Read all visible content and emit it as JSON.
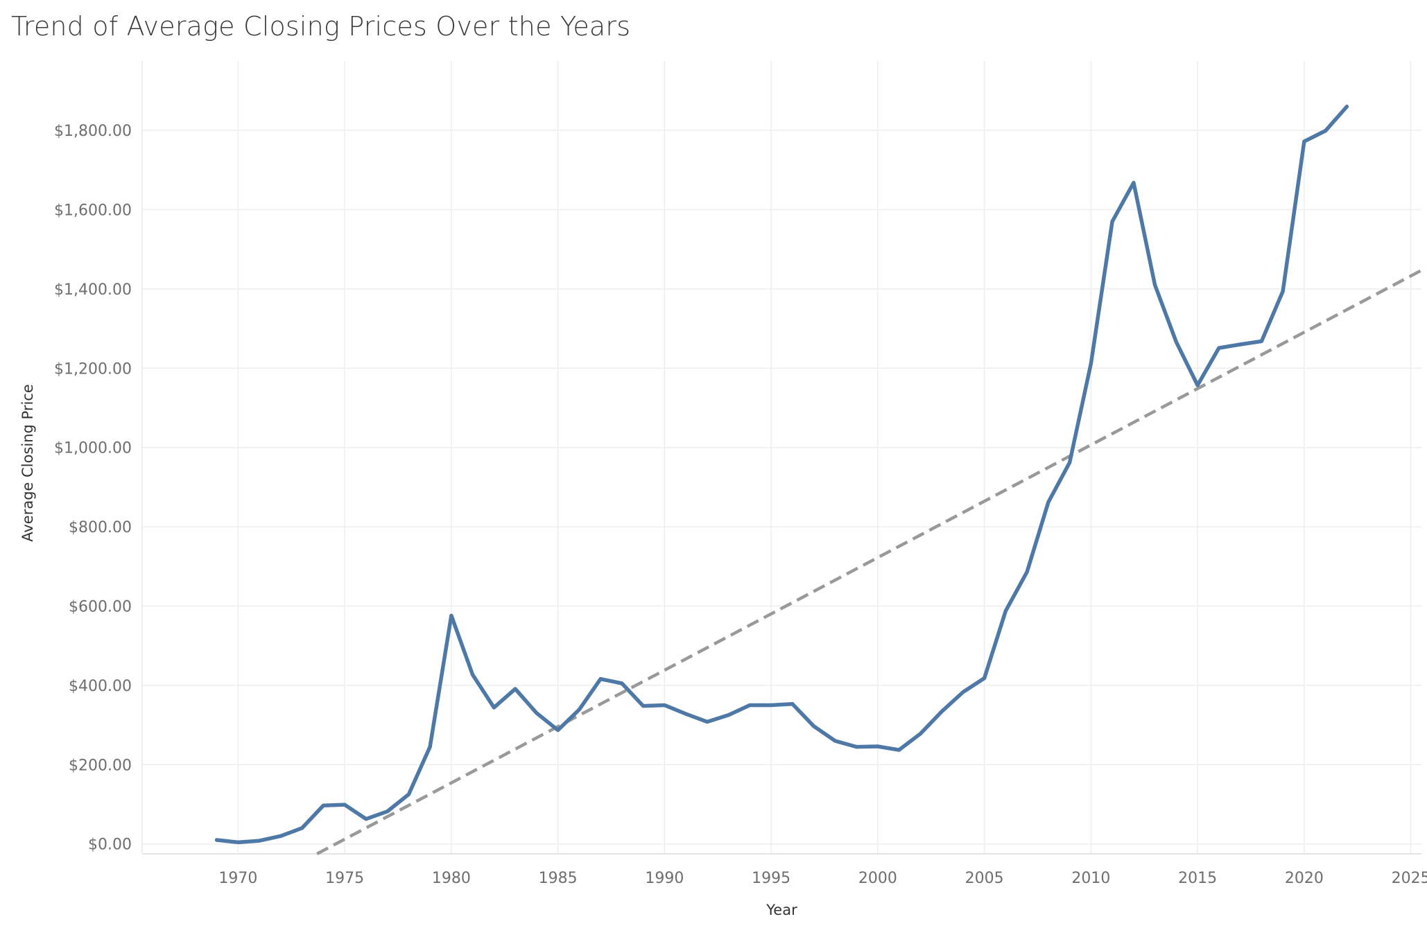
{
  "chart_data": {
    "type": "line",
    "title": "Trend of Average Closing Prices Over the Years",
    "xlabel": "Year",
    "ylabel": "Average Closing Price",
    "xlim": [
      1965.5,
      2025.5
    ],
    "ylim": [
      -25,
      1975
    ],
    "x_ticks": [
      1970,
      1975,
      1980,
      1985,
      1990,
      1995,
      2000,
      2005,
      2010,
      2015,
      2020,
      2025
    ],
    "x_tick_labels": [
      "1970",
      "1975",
      "1980",
      "1985",
      "1990",
      "1995",
      "2000",
      "2005",
      "2010",
      "2015",
      "2020",
      "2025"
    ],
    "y_ticks": [
      0,
      200,
      400,
      600,
      800,
      1000,
      1200,
      1400,
      1600,
      1800
    ],
    "y_tick_labels": [
      "$0.00",
      "$200.00",
      "$400.00",
      "$600.00",
      "$800.00",
      "$1,000.00",
      "$1,200.00",
      "$1,400.00",
      "$1,600.00",
      "$1,800.00"
    ],
    "grid": true,
    "legend": "none",
    "series": [
      {
        "x": [
          1969,
          1970,
          1971,
          1972,
          1973,
          1974,
          1975,
          1976,
          1977,
          1978,
          1979,
          1980,
          1981,
          1982,
          1983,
          1984,
          1985,
          1986,
          1987,
          1988,
          1989,
          1990,
          1991,
          1992,
          1993,
          1994,
          1995,
          1996,
          1997,
          1998,
          1999,
          2000,
          2001,
          2002,
          2003,
          2004,
          2005,
          2006,
          2007,
          2008,
          2009,
          2010,
          2011,
          2012,
          2013,
          2014,
          2015,
          2016,
          2017,
          2018,
          2019,
          2020,
          2021,
          2022
        ],
        "values": [
          10,
          4,
          8,
          20,
          40,
          97,
          99,
          63,
          82,
          125,
          245,
          576,
          427,
          344,
          391,
          330,
          287,
          339,
          416,
          405,
          348,
          350,
          328,
          308,
          325,
          350,
          350,
          353,
          297,
          260,
          245,
          246,
          237,
          278,
          334,
          383,
          418,
          588,
          686,
          862,
          962,
          1212,
          1570,
          1668,
          1410,
          1266,
          1157,
          1251,
          1260,
          1268,
          1394,
          1772,
          1799,
          1860
        ],
        "color": "#4e79a7"
      }
    ],
    "trendline": {
      "style": "dashed",
      "color": "#999999",
      "x": [
        1973.7,
        2025.5
      ],
      "values": [
        -25,
        1447
      ]
    }
  }
}
